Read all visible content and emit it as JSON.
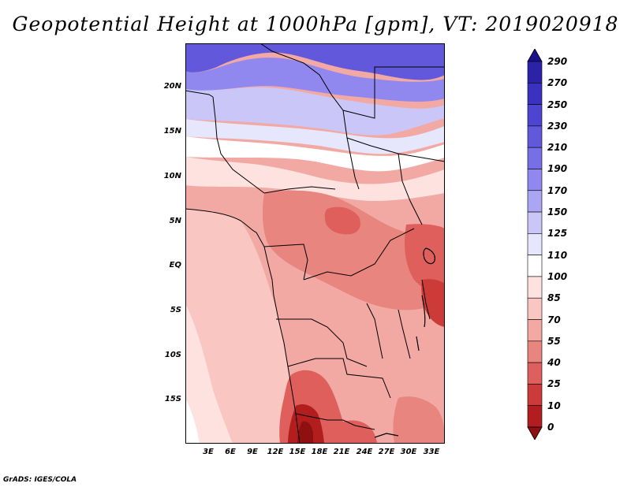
{
  "title": "Geopotential Height at 1000hPa [gpm], VT: 2019020918",
  "footer": "GrADS: IGES/COLA",
  "map": {
    "lat_labels": [
      "20N",
      "15N",
      "10N",
      "5N",
      "EQ",
      "5S",
      "10S",
      "15S"
    ],
    "lon_labels": [
      "3E",
      "6E",
      "9E",
      "12E",
      "15E",
      "18E",
      "21E",
      "24E",
      "27E",
      "30E",
      "33E"
    ]
  },
  "colorbar": {
    "levels": [
      "290",
      "270",
      "250",
      "230",
      "210",
      "190",
      "170",
      "150",
      "125",
      "110",
      "100",
      "85",
      "70",
      "55",
      "40",
      "25",
      "10",
      "0"
    ],
    "colors": [
      "#1a0f8c",
      "#2b22a8",
      "#3a32bf",
      "#4d45d1",
      "#6158dc",
      "#776fe6",
      "#9088ee",
      "#aba6f3",
      "#cac6f8",
      "#e6e6fc",
      "#ffffff",
      "#fde2e0",
      "#f9c6c2",
      "#f2a9a3",
      "#e8857f",
      "#de5f5b",
      "#cc3b38",
      "#b21e1e",
      "#8f1010"
    ]
  }
}
